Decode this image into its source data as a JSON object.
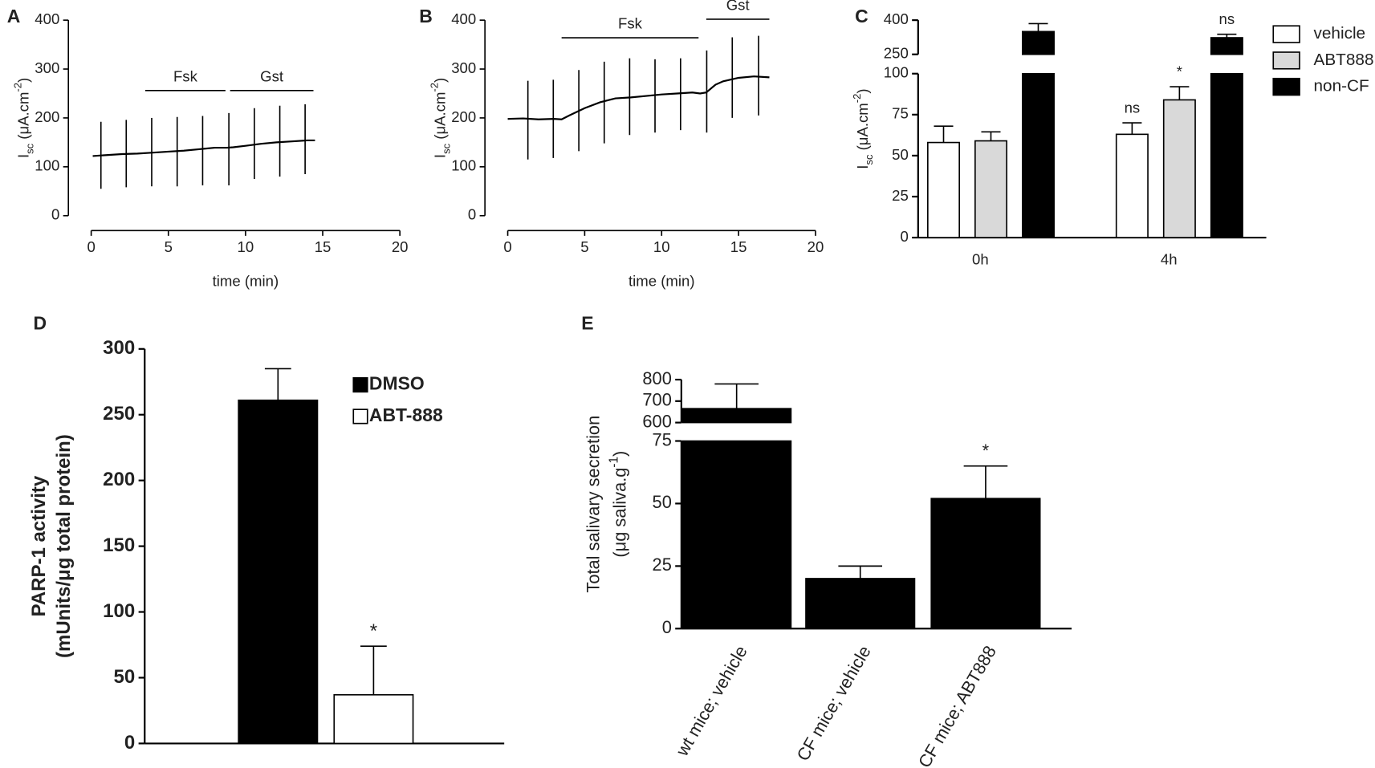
{
  "chart_data": [
    {
      "type": "line",
      "panel": "A",
      "xlabel": "time (min)",
      "ylabel": [
        [
          {
            "text": "I"
          },
          {
            "text": "sc",
            "shift": "sub"
          },
          {
            "text": " (μA.cm"
          },
          {
            "text": "-2",
            "shift": "sup"
          },
          {
            "text": ")"
          }
        ]
      ],
      "xlim": [
        0,
        20
      ],
      "xticks": [
        0,
        5,
        10,
        15,
        20
      ],
      "ylim": [
        0,
        400
      ],
      "yticks": [
        0,
        100,
        200,
        300,
        400
      ],
      "series": [
        {
          "color": "#000000",
          "x": [
            0.1,
            1,
            2,
            3,
            4,
            5,
            6,
            7,
            8,
            8.8,
            9.2,
            10,
            11,
            12,
            13,
            14,
            14.5
          ],
          "values": [
            122,
            124,
            126,
            127,
            129,
            131,
            133,
            136,
            139,
            139,
            140,
            143,
            147,
            150,
            152,
            154,
            154
          ]
        }
      ],
      "pulses": {
        "x": [
          0.63,
          2.27,
          3.92,
          5.57,
          7.22,
          8.92,
          10.57,
          12.22,
          13.86
        ],
        "low": [
          55,
          58,
          60,
          60,
          62,
          62,
          75,
          80,
          85
        ],
        "high": [
          192,
          196,
          200,
          202,
          204,
          210,
          220,
          225,
          228
        ]
      },
      "annotations": [
        {
          "text": "Fsk",
          "x": [
            3.5,
            8.7
          ],
          "y": 256
        },
        {
          "text": "Gst",
          "x": [
            9,
            14.4
          ],
          "y": 256
        }
      ]
    },
    {
      "type": "line",
      "panel": "B",
      "xlabel": "time (min)",
      "ylabel": [
        [
          {
            "text": "I"
          },
          {
            "text": "sc",
            "shift": "sub"
          },
          {
            "text": " (μA.cm"
          },
          {
            "text": "-2",
            "shift": "sup"
          },
          {
            "text": ")"
          }
        ]
      ],
      "xlim": [
        0,
        20
      ],
      "xticks": [
        0,
        5,
        10,
        15,
        20
      ],
      "ylim": [
        0,
        400
      ],
      "yticks": [
        0,
        100,
        200,
        300,
        400
      ],
      "series": [
        {
          "color": "#000000",
          "x": [
            0,
            1,
            2,
            3,
            3.5,
            4,
            5,
            6,
            7,
            8,
            9,
            10,
            11,
            12,
            12.5,
            12.9,
            13.5,
            14,
            15,
            16,
            17
          ],
          "values": [
            198,
            199,
            197,
            198,
            197,
            205,
            220,
            232,
            240,
            242,
            245,
            248,
            250,
            252,
            250,
            252,
            268,
            275,
            282,
            285,
            283
          ]
        }
      ],
      "pulses": {
        "x": [
          1.31,
          2.96,
          4.62,
          6.27,
          7.92,
          9.57,
          11.23,
          12.93,
          14.59,
          16.3
        ],
        "low": [
          115,
          118,
          132,
          148,
          165,
          170,
          175,
          170,
          200,
          205
        ],
        "high": [
          276,
          278,
          298,
          315,
          322,
          320,
          322,
          338,
          365,
          368
        ]
      },
      "annotations": [
        {
          "text": "Fsk",
          "x": [
            3.5,
            12.4
          ],
          "y": 364
        },
        {
          "text": "Gst",
          "x": [
            12.9,
            17
          ],
          "y": 402
        }
      ]
    },
    {
      "type": "bar",
      "panel": "C",
      "categories": [
        "0h",
        "4h"
      ],
      "ylabel": [
        [
          {
            "text": "I"
          },
          {
            "text": "sc",
            "shift": "sub"
          },
          {
            "text": " (μA.cm"
          },
          {
            "text": "-2",
            "shift": "sup"
          },
          {
            "text": ")"
          }
        ]
      ],
      "ylim": [
        0,
        400
      ],
      "ybreak": [
        100,
        250
      ],
      "yticks": [
        0,
        25,
        50,
        75,
        100,
        250,
        400
      ],
      "series": [
        {
          "name": "vehicle",
          "color": "#ffffff",
          "values": [
            58,
            63
          ],
          "errors": [
            10,
            7
          ],
          "annotations": [
            null,
            "ns"
          ]
        },
        {
          "name": "ABT888",
          "color": "#d9d9d9",
          "values": [
            59,
            84
          ],
          "errors": [
            5.5,
            8
          ],
          "annotations": [
            null,
            "*"
          ]
        },
        {
          "name": "non-CF",
          "color": "#000000",
          "values": [
            350,
            323
          ],
          "errors": [
            35,
            15
          ],
          "annotations": [
            null,
            "ns"
          ]
        }
      ]
    },
    {
      "type": "bar",
      "panel": "D",
      "categories": [
        null
      ],
      "ylabel": [
        [
          {
            "text": "PARP-1 activity"
          }
        ],
        [
          {
            "text": "(mUnits/μg total protein)"
          }
        ]
      ],
      "ylim": [
        0,
        300
      ],
      "yticks": [
        0,
        50,
        100,
        150,
        200,
        250,
        300
      ],
      "series": [
        {
          "name": "DMSO",
          "color": "#000000",
          "values": [
            261
          ],
          "errors": [
            24
          ],
          "annotations": [
            null
          ]
        },
        {
          "name": "ABT-888",
          "color": "#ffffff",
          "values": [
            37
          ],
          "errors": [
            37
          ],
          "annotations": [
            "*"
          ]
        }
      ]
    },
    {
      "type": "bar",
      "panel": "E",
      "categories": [
        "wt mice; vehicle",
        "CF mice; vehicle",
        "CF mice; ABT888"
      ],
      "ylabel": [
        [
          {
            "text": "Total salivary secretion"
          }
        ],
        [
          {
            "text": "(μg saliva.g"
          },
          {
            "text": "-1",
            "shift": "sup"
          },
          {
            "text": ")"
          }
        ]
      ],
      "ylim": [
        0,
        800
      ],
      "ybreak": [
        75,
        600
      ],
      "yticks": [
        0,
        25,
        50,
        75,
        600,
        700,
        800
      ],
      "series": [
        {
          "color": "#000000",
          "values": [
            665,
            20,
            52
          ],
          "errors": [
            115,
            5,
            13
          ],
          "annotations": [
            null,
            null,
            "*"
          ]
        }
      ]
    }
  ]
}
